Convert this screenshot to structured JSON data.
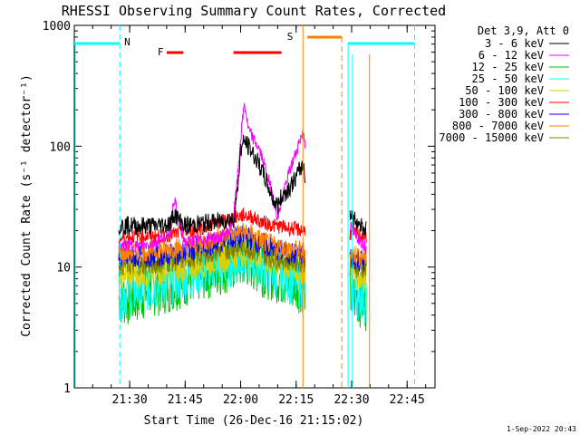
{
  "chart_data": {
    "type": "line",
    "title": "RHESSI Observing Summary Count Rates, Corrected",
    "xlabel": "Start Time (26-Dec-16 21:15:02)",
    "ylabel": "Corrected Count Rate (s⁻¹ detector⁻¹)",
    "yscale": "log",
    "ylim": [
      1,
      1000
    ],
    "xlim": [
      "21:15:02",
      "22:52:30"
    ],
    "x_ticks": [
      "21:30",
      "21:45",
      "22:00",
      "22:15",
      "22:30",
      "22:45"
    ],
    "y_ticks": [
      "1",
      "10",
      "100",
      "1000"
    ],
    "footer": "1-Sep-2022 20:43",
    "legend": {
      "placement": "top-right",
      "header": "Det 3,9, Att 0",
      "entries": [
        {
          "label": "3 - 6 keV",
          "color": "#000000"
        },
        {
          "label": "6 - 12 keV",
          "color": "#ff00ff"
        },
        {
          "label": "12 - 25 keV",
          "color": "#00c000"
        },
        {
          "label": "25 - 50 keV",
          "color": "#00ffff"
        },
        {
          "label": "50 - 100 keV",
          "color": "#e0d000"
        },
        {
          "label": "100 - 300 keV",
          "color": "#ff0000"
        },
        {
          "label": "300 - 800 keV",
          "color": "#0000ff"
        },
        {
          "label": "800 - 7000 keV",
          "color": "#ff8000"
        },
        {
          "label": "7000 - 15000 keV",
          "color": "#808000"
        }
      ]
    },
    "x_min": [
      0,
      97.5
    ],
    "segments": [
      {
        "t0": 12.0,
        "t1": 62.5
      },
      {
        "t0": 74.5,
        "t1": 79.0
      }
    ],
    "series": [
      {
        "name": "3 - 6 keV",
        "color": "#000000",
        "points": [
          [
            12,
            22
          ],
          [
            18,
            22
          ],
          [
            22,
            22
          ],
          [
            26,
            23
          ],
          [
            27,
            28
          ],
          [
            28,
            25
          ],
          [
            30,
            22
          ],
          [
            35,
            23
          ],
          [
            40,
            24
          ],
          [
            42,
            25
          ],
          [
            43,
            24
          ],
          [
            44,
            40
          ],
          [
            45,
            95
          ],
          [
            46,
            110
          ],
          [
            47,
            100
          ],
          [
            48,
            90
          ],
          [
            50,
            70
          ],
          [
            52,
            50
          ],
          [
            54,
            35
          ],
          [
            55,
            32
          ],
          [
            56,
            38
          ],
          [
            58,
            45
          ],
          [
            60,
            55
          ],
          [
            61,
            65
          ],
          [
            62,
            70
          ],
          [
            62.5,
            55
          ],
          [
            74.5,
            28
          ],
          [
            76,
            24
          ],
          [
            78,
            22
          ],
          [
            79,
            20
          ]
        ]
      },
      {
        "name": "6 - 12 keV",
        "color": "#ff00ff",
        "points": [
          [
            12,
            15
          ],
          [
            18,
            15
          ],
          [
            22,
            16
          ],
          [
            26,
            20
          ],
          [
            27,
            38
          ],
          [
            28,
            25
          ],
          [
            30,
            16
          ],
          [
            35,
            17
          ],
          [
            40,
            18
          ],
          [
            42,
            20
          ],
          [
            43,
            25
          ],
          [
            44,
            50
          ],
          [
            45,
            120
          ],
          [
            46,
            230
          ],
          [
            47,
            140
          ],
          [
            48,
            120
          ],
          [
            50,
            95
          ],
          [
            52,
            60
          ],
          [
            54,
            35
          ],
          [
            55,
            25
          ],
          [
            56,
            35
          ],
          [
            58,
            60
          ],
          [
            60,
            90
          ],
          [
            61,
            115
          ],
          [
            62,
            130
          ],
          [
            62.5,
            100
          ],
          [
            74.5,
            22
          ],
          [
            76,
            18
          ],
          [
            78,
            16
          ],
          [
            79,
            14
          ]
        ]
      },
      {
        "name": "12 - 25 keV",
        "color": "#00c000",
        "points": [
          [
            12,
            5.5
          ],
          [
            15,
            5.5
          ],
          [
            17,
            5.8
          ],
          [
            20,
            6.5
          ],
          [
            25,
            7
          ],
          [
            30,
            8
          ],
          [
            35,
            9
          ],
          [
            40,
            10
          ],
          [
            44,
            11
          ],
          [
            46,
            11.5
          ],
          [
            48,
            11
          ],
          [
            50,
            10
          ],
          [
            55,
            8.5
          ],
          [
            58,
            7.5
          ],
          [
            62.5,
            7
          ],
          [
            74.5,
            6
          ],
          [
            77,
            5.5
          ],
          [
            79,
            5
          ]
        ]
      },
      {
        "name": "25 - 50 keV",
        "color": "#00ffff",
        "points": [
          [
            12,
            6
          ],
          [
            15,
            6.2
          ],
          [
            17,
            6.5
          ],
          [
            20,
            7
          ],
          [
            25,
            7.5
          ],
          [
            30,
            8.5
          ],
          [
            35,
            9.5
          ],
          [
            40,
            10.5
          ],
          [
            44,
            11.5
          ],
          [
            46,
            12
          ],
          [
            48,
            11.5
          ],
          [
            50,
            10.5
          ],
          [
            55,
            9
          ],
          [
            58,
            8
          ],
          [
            62.5,
            7.5
          ],
          [
            74.5,
            6.5
          ],
          [
            77,
            6
          ],
          [
            79,
            5.5
          ]
        ]
      },
      {
        "name": "50 - 100 keV",
        "color": "#e0d000",
        "points": [
          [
            12,
            9
          ],
          [
            18,
            9
          ],
          [
            22,
            9.2
          ],
          [
            26,
            9.5
          ],
          [
            30,
            10
          ],
          [
            35,
            11
          ],
          [
            40,
            12
          ],
          [
            44,
            13
          ],
          [
            46,
            13.5
          ],
          [
            48,
            13
          ],
          [
            50,
            12
          ],
          [
            55,
            11
          ],
          [
            58,
            10
          ],
          [
            62.5,
            9.5
          ],
          [
            74.5,
            9
          ],
          [
            77,
            8.5
          ],
          [
            79,
            8
          ]
        ]
      },
      {
        "name": "100 - 300 keV",
        "color": "#ff0000",
        "points": [
          [
            12,
            17
          ],
          [
            16,
            18
          ],
          [
            20,
            18
          ],
          [
            24,
            18
          ],
          [
            28,
            19
          ],
          [
            32,
            20
          ],
          [
            36,
            22
          ],
          [
            40,
            24
          ],
          [
            44,
            26
          ],
          [
            46,
            27
          ],
          [
            48,
            26
          ],
          [
            50,
            24
          ],
          [
            54,
            22
          ],
          [
            58,
            21
          ],
          [
            62.5,
            20
          ],
          [
            74.5,
            19
          ],
          [
            77,
            18.5
          ],
          [
            79,
            18
          ]
        ]
      },
      {
        "name": "300 - 800 keV",
        "color": "#0000ff",
        "points": [
          [
            12,
            12
          ],
          [
            16,
            12
          ],
          [
            20,
            12.5
          ],
          [
            24,
            12.5
          ],
          [
            28,
            13
          ],
          [
            32,
            14
          ],
          [
            36,
            15
          ],
          [
            40,
            16.5
          ],
          [
            44,
            17.5
          ],
          [
            46,
            18
          ],
          [
            48,
            17
          ],
          [
            50,
            16
          ],
          [
            54,
            14
          ],
          [
            58,
            13
          ],
          [
            62.5,
            12.5
          ],
          [
            74.5,
            12
          ],
          [
            77,
            11.5
          ],
          [
            79,
            11
          ]
        ]
      },
      {
        "name": "800 - 7000 keV",
        "color": "#ff8000",
        "points": [
          [
            12,
            13
          ],
          [
            16,
            13.5
          ],
          [
            20,
            13.5
          ],
          [
            24,
            14
          ],
          [
            28,
            14.5
          ],
          [
            32,
            15.5
          ],
          [
            36,
            16.5
          ],
          [
            40,
            18
          ],
          [
            44,
            19
          ],
          [
            46,
            19.5
          ],
          [
            48,
            18.5
          ],
          [
            50,
            17
          ],
          [
            54,
            15
          ],
          [
            58,
            14
          ],
          [
            62.5,
            13.5
          ],
          [
            74.5,
            13
          ],
          [
            77,
            12.5
          ],
          [
            79,
            12
          ]
        ]
      },
      {
        "name": "7000 - 15000 keV",
        "color": "#808000",
        "points": [
          [
            12,
            10.5
          ],
          [
            16,
            10.5
          ],
          [
            20,
            10.5
          ],
          [
            24,
            11
          ],
          [
            28,
            11.5
          ],
          [
            32,
            12
          ],
          [
            36,
            13
          ],
          [
            40,
            14
          ],
          [
            44,
            14.5
          ],
          [
            46,
            15
          ],
          [
            48,
            14
          ],
          [
            50,
            13
          ],
          [
            54,
            12
          ],
          [
            58,
            11.5
          ],
          [
            62.5,
            11
          ],
          [
            74.5,
            10.5
          ],
          [
            77,
            10
          ],
          [
            79,
            9.5
          ]
        ]
      }
    ],
    "annotations": {
      "night_label": "N",
      "night_color": "#00ffff",
      "flare_label": "F",
      "flare_color": "#ff0000",
      "saa_label": "S",
      "saa_color": "#ff8000"
    }
  }
}
